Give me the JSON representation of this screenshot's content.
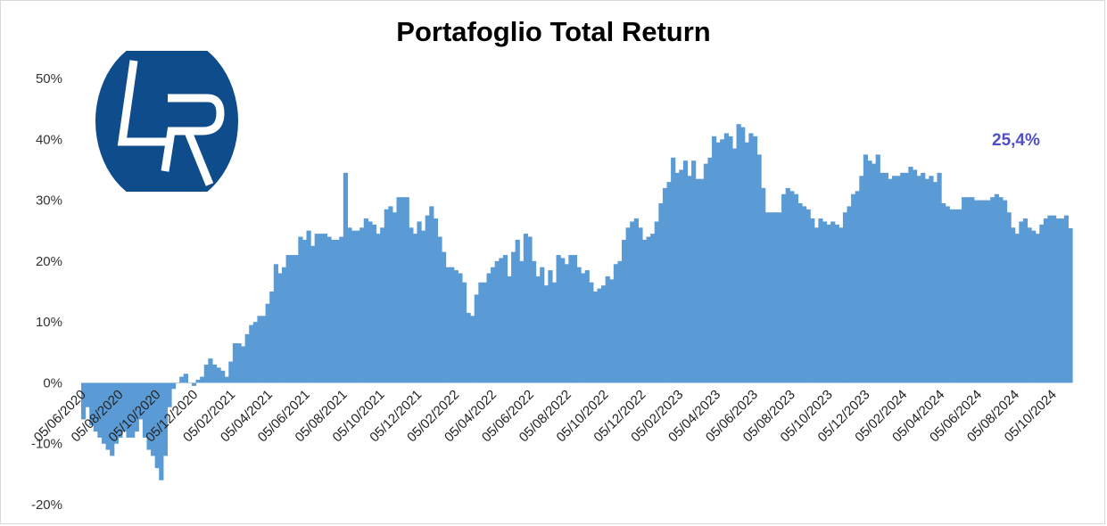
{
  "chart_data": {
    "type": "bar",
    "title": "Portafoglio Total Return",
    "annotation": "25,4%",
    "ylim": [
      -0.2,
      0.5
    ],
    "yticks": [
      {
        "value": 0.5,
        "label": "50%"
      },
      {
        "value": 0.4,
        "label": "40%"
      },
      {
        "value": 0.3,
        "label": "30%"
      },
      {
        "value": 0.2,
        "label": "20%"
      },
      {
        "value": 0.1,
        "label": "10%"
      },
      {
        "value": 0.0,
        "label": "0%"
      },
      {
        "value": -0.1,
        "label": "-10%"
      },
      {
        "value": -0.2,
        "label": "-20%"
      }
    ],
    "xticks": [
      "05/06/2020",
      "05/08/2020",
      "05/10/2020",
      "05/12/2020",
      "05/02/2021",
      "05/04/2021",
      "05/06/2021",
      "05/08/2021",
      "05/10/2021",
      "05/12/2021",
      "05/02/2022",
      "05/04/2022",
      "05/06/2022",
      "05/08/2022",
      "05/10/2022",
      "05/12/2022",
      "05/02/2023",
      "05/04/2023",
      "05/06/2023",
      "05/08/2023",
      "05/10/2023",
      "05/12/2023",
      "05/02/2024",
      "05/04/2024",
      "05/06/2024",
      "05/08/2024",
      "05/10/2024"
    ],
    "series_color": "#5b9bd5",
    "grid": false,
    "legend": "none",
    "values": [
      -0.06,
      -0.04,
      -0.07,
      -0.08,
      -0.09,
      -0.1,
      -0.11,
      -0.12,
      -0.1,
      -0.09,
      -0.08,
      -0.09,
      -0.09,
      -0.08,
      -0.06,
      -0.09,
      -0.11,
      -0.12,
      -0.14,
      -0.16,
      -0.12,
      -0.04,
      -0.01,
      0.0,
      0.01,
      0.015,
      0.0,
      -0.005,
      0.005,
      0.01,
      0.03,
      0.04,
      0.03,
      0.025,
      0.02,
      0.01,
      0.035,
      0.065,
      0.065,
      0.06,
      0.08,
      0.095,
      0.1,
      0.11,
      0.11,
      0.13,
      0.15,
      0.195,
      0.18,
      0.19,
      0.21,
      0.21,
      0.21,
      0.24,
      0.235,
      0.25,
      0.225,
      0.245,
      0.245,
      0.245,
      0.24,
      0.235,
      0.235,
      0.24,
      0.345,
      0.255,
      0.25,
      0.25,
      0.255,
      0.27,
      0.265,
      0.26,
      0.245,
      0.255,
      0.285,
      0.29,
      0.28,
      0.305,
      0.305,
      0.305,
      0.255,
      0.245,
      0.265,
      0.25,
      0.275,
      0.29,
      0.27,
      0.24,
      0.215,
      0.19,
      0.19,
      0.185,
      0.18,
      0.165,
      0.115,
      0.11,
      0.145,
      0.165,
      0.165,
      0.18,
      0.19,
      0.2,
      0.205,
      0.21,
      0.175,
      0.215,
      0.235,
      0.2,
      0.245,
      0.24,
      0.2,
      0.175,
      0.19,
      0.16,
      0.185,
      0.165,
      0.21,
      0.205,
      0.195,
      0.21,
      0.21,
      0.19,
      0.18,
      0.185,
      0.165,
      0.15,
      0.155,
      0.16,
      0.175,
      0.17,
      0.195,
      0.2,
      0.235,
      0.255,
      0.265,
      0.27,
      0.255,
      0.235,
      0.24,
      0.245,
      0.265,
      0.295,
      0.32,
      0.33,
      0.37,
      0.345,
      0.35,
      0.365,
      0.34,
      0.365,
      0.335,
      0.335,
      0.36,
      0.37,
      0.405,
      0.395,
      0.4,
      0.41,
      0.405,
      0.385,
      0.425,
      0.42,
      0.395,
      0.41,
      0.405,
      0.375,
      0.32,
      0.28,
      0.28,
      0.28,
      0.28,
      0.31,
      0.32,
      0.315,
      0.31,
      0.295,
      0.29,
      0.285,
      0.27,
      0.255,
      0.27,
      0.265,
      0.26,
      0.265,
      0.26,
      0.255,
      0.28,
      0.29,
      0.31,
      0.315,
      0.34,
      0.375,
      0.365,
      0.36,
      0.375,
      0.345,
      0.345,
      0.335,
      0.34,
      0.34,
      0.345,
      0.345,
      0.355,
      0.35,
      0.34,
      0.345,
      0.335,
      0.34,
      0.33,
      0.345,
      0.295,
      0.29,
      0.285,
      0.285,
      0.285,
      0.305,
      0.305,
      0.305,
      0.3,
      0.3,
      0.3,
      0.3,
      0.305,
      0.31,
      0.305,
      0.3,
      0.28,
      0.255,
      0.245,
      0.265,
      0.27,
      0.255,
      0.25,
      0.245,
      0.26,
      0.27,
      0.275,
      0.275,
      0.27,
      0.27,
      0.275,
      0.254
    ]
  },
  "logo": {
    "text": "LR",
    "bg_color": "#0f4c8c",
    "fg_color": "#ffffff"
  }
}
